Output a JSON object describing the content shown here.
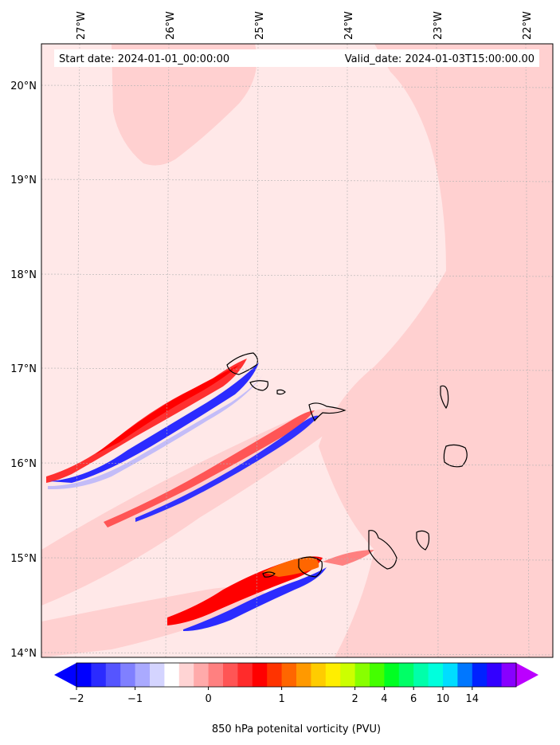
{
  "header": {
    "start_date": "Start date: 2024-01-01_00:00:00",
    "valid_date": "Valid_date: 2024-01-03T15:00:00.00"
  },
  "longitude_labels": [
    "27°W",
    "26°W",
    "25°W",
    "24°W",
    "23°W",
    "22°W"
  ],
  "latitude_labels": [
    "20°N",
    "19°N",
    "18°N",
    "17°N",
    "16°N",
    "15°N",
    "14°N"
  ],
  "colorbar": {
    "label": "850 hPa potenital vorticity (PVU)",
    "tick_labels": [
      "−2",
      "−1",
      "0",
      "1",
      "2",
      "4",
      "6",
      "10",
      "14"
    ],
    "colors": [
      "#0000ff",
      "#2b2bff",
      "#5555ff",
      "#8080ff",
      "#aaaaff",
      "#d4d4ff",
      "#ffffff",
      "#ffd4d4",
      "#ffaaaa",
      "#ff8080",
      "#ff5555",
      "#ff2b2b",
      "#ff0000",
      "#ff3300",
      "#ff6600",
      "#ff9900",
      "#ffcc00",
      "#ffee00",
      "#ccff00",
      "#88ff00",
      "#44ff00",
      "#00ff22",
      "#00ff66",
      "#00ffaa",
      "#00ffdd",
      "#00ddff",
      "#0077ff",
      "#0022ff",
      "#3300ff",
      "#8800ff"
    ],
    "under_color": "#0000ff",
    "over_color": "#bb00ff"
  },
  "map_colors": {
    "background_pink": "#ffe8e8",
    "light_pink": "#ffd0d0",
    "coast": "#000000"
  }
}
